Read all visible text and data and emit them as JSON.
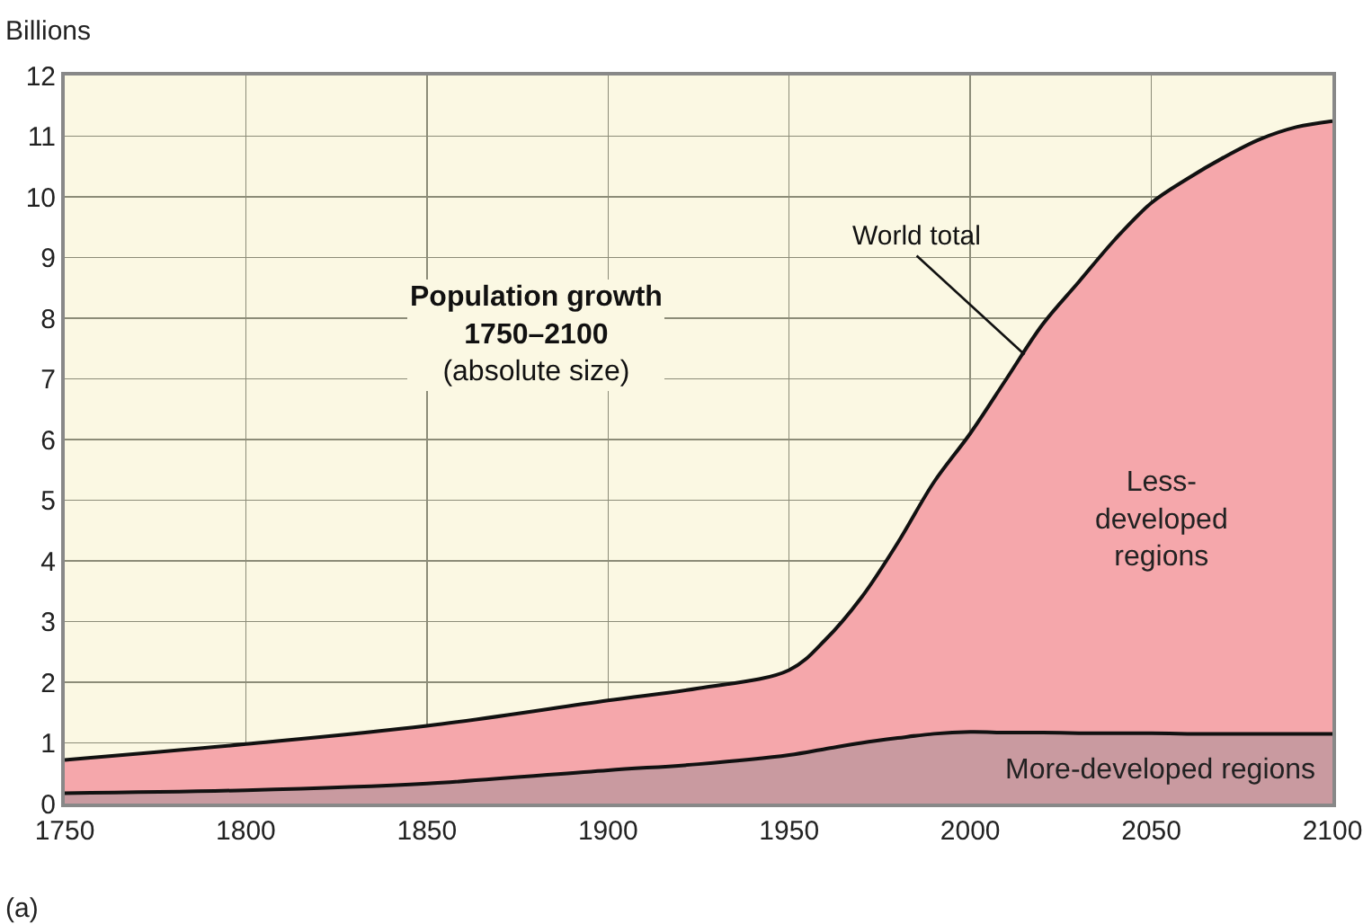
{
  "chart_data": {
    "type": "area",
    "stacked": true,
    "title": "Population growth 1750–2100",
    "subtitle": "(absolute size)",
    "ylabel": "Billions",
    "x": [
      1750,
      1800,
      1850,
      1900,
      1925,
      1950,
      1960,
      1970,
      1980,
      1990,
      2000,
      2010,
      2020,
      2030,
      2040,
      2050,
      2060,
      2070,
      2080,
      2090,
      2100
    ],
    "series": [
      {
        "name": "More-developed regions",
        "color": "#c99aa0",
        "values": [
          0.17,
          0.22,
          0.33,
          0.55,
          0.65,
          0.8,
          0.9,
          1.0,
          1.08,
          1.15,
          1.18,
          1.17,
          1.17,
          1.16,
          1.16,
          1.16,
          1.15,
          1.15,
          1.15,
          1.15,
          1.15
        ]
      },
      {
        "name": "Less-developed regions",
        "color": "#f5a7ab",
        "values": [
          0.55,
          0.76,
          0.95,
          1.15,
          1.25,
          1.4,
          1.8,
          2.4,
          3.22,
          4.15,
          4.92,
          5.83,
          6.73,
          7.44,
          8.14,
          8.74,
          9.15,
          9.5,
          9.8,
          10.0,
          10.1
        ]
      }
    ],
    "xlim": [
      1750,
      2100
    ],
    "xticks": [
      1750,
      1800,
      1850,
      1900,
      1950,
      2000,
      2050,
      2100
    ],
    "ylim": [
      0,
      12
    ],
    "yticks": [
      0,
      1,
      2,
      3,
      4,
      5,
      6,
      7,
      8,
      9,
      10,
      11,
      12
    ],
    "grid": true,
    "legend": false,
    "annotations": [
      {
        "text": "World total",
        "x": 2015,
        "y": 7.4
      },
      "(a)"
    ]
  }
}
